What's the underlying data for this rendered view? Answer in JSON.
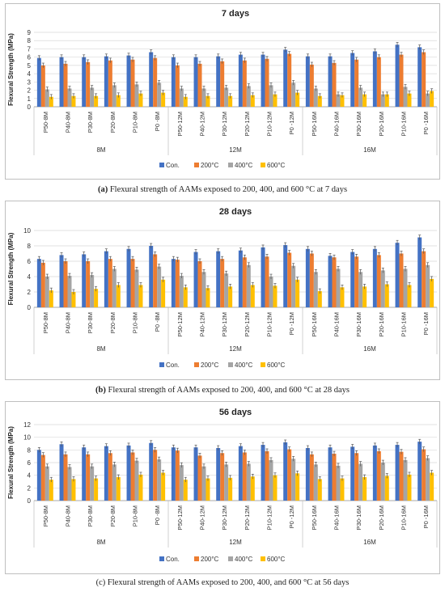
{
  "legend": [
    "Con.",
    "200°C",
    "400°C",
    "600°C"
  ],
  "colors": [
    "#4472C4",
    "#ED7D31",
    "#A5A5A5",
    "#FFC000"
  ],
  "chart_data": [
    {
      "type": "bar",
      "title": "7 days",
      "ylabel": "Flexural Strength (MPa)",
      "ylim": [
        0,
        9
      ],
      "yticks": [
        0,
        1,
        2,
        3,
        4,
        5,
        6,
        7,
        8,
        9
      ],
      "categories": [
        "P50-8M",
        "P40-8M",
        "P30-8M",
        "P20-8M",
        "P10-8M",
        "P0 -8M",
        "P50-12M",
        "P40-12M",
        "P30-12M",
        "P20-12M",
        "P10-12M",
        "P0 -12M",
        "P50-16M",
        "P40-16M",
        "P30-16M",
        "P20-16M",
        "P10-16M",
        "P0 -16M"
      ],
      "groups": [
        {
          "label": "8M",
          "span": 6
        },
        {
          "label": "12M",
          "span": 6
        },
        {
          "label": "16M",
          "span": 6
        }
      ],
      "series": [
        {
          "name": "Con.",
          "values": [
            5.9,
            6.0,
            6.0,
            6.1,
            6.2,
            6.6,
            6.0,
            6.0,
            6.1,
            6.3,
            6.3,
            6.9,
            6.1,
            6.1,
            6.5,
            6.7,
            7.5,
            7.2
          ]
        },
        {
          "name": "200°C",
          "values": [
            5.0,
            5.2,
            5.4,
            5.6,
            5.7,
            5.9,
            5.0,
            5.2,
            5.5,
            5.6,
            5.8,
            6.4,
            5.1,
            5.3,
            5.7,
            6.0,
            6.3,
            6.6
          ]
        },
        {
          "name": "400°C",
          "values": [
            2.1,
            2.2,
            2.3,
            2.6,
            2.7,
            2.9,
            2.2,
            2.2,
            2.3,
            2.5,
            2.6,
            2.9,
            2.2,
            1.5,
            2.3,
            1.5,
            2.4,
            1.6
          ]
        },
        {
          "name": "600°C",
          "values": [
            1.2,
            1.3,
            1.3,
            1.4,
            1.6,
            1.7,
            1.2,
            1.3,
            1.3,
            1.4,
            1.5,
            1.7,
            1.3,
            1.4,
            1.5,
            1.5,
            1.6,
            1.9
          ]
        }
      ],
      "caption_label": "(a)",
      "caption_text": " Flexural strength of AAMs exposed to 200, 400, and 600 °C at 7 days"
    },
    {
      "type": "bar",
      "title": "28 days",
      "ylabel": "Flexural Strength (MPa)",
      "ylim": [
        0,
        10
      ],
      "yticks": [
        0,
        2,
        4,
        6,
        8,
        10
      ],
      "categories": [
        "P50-8M",
        "P40-8M",
        "P30-8M",
        "P20-8M",
        "P10-8M",
        "P0 -8M",
        "P50-12M",
        "P40-12M",
        "P30-12M",
        "P20-12M",
        "P10-12M",
        "P0 -12M",
        "P50-16M",
        "P40-16M",
        "P30-16M",
        "P20-16M",
        "P10-16M",
        "P0 -16M"
      ],
      "groups": [
        {
          "label": "8M",
          "span": 6
        },
        {
          "label": "12M",
          "span": 6
        },
        {
          "label": "16M",
          "span": 6
        }
      ],
      "series": [
        {
          "name": "Con.",
          "values": [
            6.3,
            6.8,
            6.9,
            7.3,
            7.6,
            8.0,
            6.3,
            7.2,
            7.3,
            7.4,
            7.8,
            8.1,
            7.6,
            6.7,
            7.2,
            7.6,
            8.4,
            9.1
          ]
        },
        {
          "name": "200°C",
          "values": [
            5.8,
            6.0,
            6.0,
            6.3,
            6.3,
            6.9,
            6.2,
            6.0,
            6.3,
            6.5,
            6.6,
            7.1,
            7.0,
            6.5,
            6.6,
            6.8,
            7.0,
            7.3
          ]
        },
        {
          "name": "400°C",
          "values": [
            4.0,
            4.1,
            4.2,
            5.0,
            4.9,
            5.3,
            4.1,
            4.6,
            4.4,
            5.5,
            4.0,
            5.4,
            4.6,
            5.0,
            4.6,
            4.8,
            5.0,
            5.5
          ]
        },
        {
          "name": "600°C",
          "values": [
            2.2,
            2.0,
            2.4,
            2.9,
            2.9,
            3.6,
            2.6,
            2.5,
            2.7,
            2.9,
            2.8,
            3.6,
            2.1,
            2.6,
            2.7,
            3.0,
            2.9,
            3.7
          ]
        }
      ],
      "caption_label": "(b)",
      "caption_text": " Flexural strength of AAMs exposed to 200, 400, and 600 °C at 28 days"
    },
    {
      "type": "bar",
      "title": "56 days",
      "ylabel": "Flexural Strength (MPa)",
      "ylim": [
        0,
        12
      ],
      "yticks": [
        0,
        2,
        4,
        6,
        8,
        10,
        12
      ],
      "categories": [
        "P50-8M",
        "P40-8M",
        "P30-8M",
        "P20-8M",
        "P10-8M",
        "P0 -8M",
        "P50-12M",
        "P40-12M",
        "P30-12M",
        "P20-12M",
        "P10-12M",
        "P0 -12M",
        "P50-16M",
        "P40-16M",
        "P30-16M",
        "P20-16M",
        "P10-16M",
        "P0 -16M"
      ],
      "groups": [
        {
          "label": "8M",
          "span": 6
        },
        {
          "label": "12M",
          "span": 6
        },
        {
          "label": "16M",
          "span": 6
        }
      ],
      "series": [
        {
          "name": "Con.",
          "values": [
            8.0,
            8.9,
            8.4,
            8.6,
            8.7,
            9.1,
            8.4,
            8.4,
            8.3,
            8.6,
            8.8,
            9.2,
            8.3,
            8.4,
            8.5,
            8.7,
            8.8,
            9.3
          ]
        },
        {
          "name": "200°C",
          "values": [
            7.2,
            7.3,
            7.3,
            7.5,
            7.6,
            8.0,
            7.9,
            7.1,
            7.5,
            7.6,
            7.8,
            8.1,
            7.3,
            7.4,
            7.5,
            7.8,
            7.7,
            8.1
          ]
        },
        {
          "name": "400°C",
          "values": [
            5.4,
            5.3,
            5.4,
            5.7,
            6.3,
            6.5,
            5.6,
            5.4,
            5.7,
            5.8,
            6.4,
            6.6,
            5.7,
            5.5,
            5.8,
            6.0,
            6.4,
            6.7
          ]
        },
        {
          "name": "600°C",
          "values": [
            3.3,
            3.4,
            3.5,
            3.7,
            4.1,
            4.4,
            3.3,
            3.5,
            3.6,
            3.8,
            4.0,
            4.3,
            3.4,
            3.5,
            3.7,
            3.9,
            4.1,
            4.4
          ]
        }
      ],
      "caption_label": "(c)",
      "caption_text": " Flexural strength of AAMs exposed to 200, 400, and 600 °C at 56 days"
    }
  ]
}
